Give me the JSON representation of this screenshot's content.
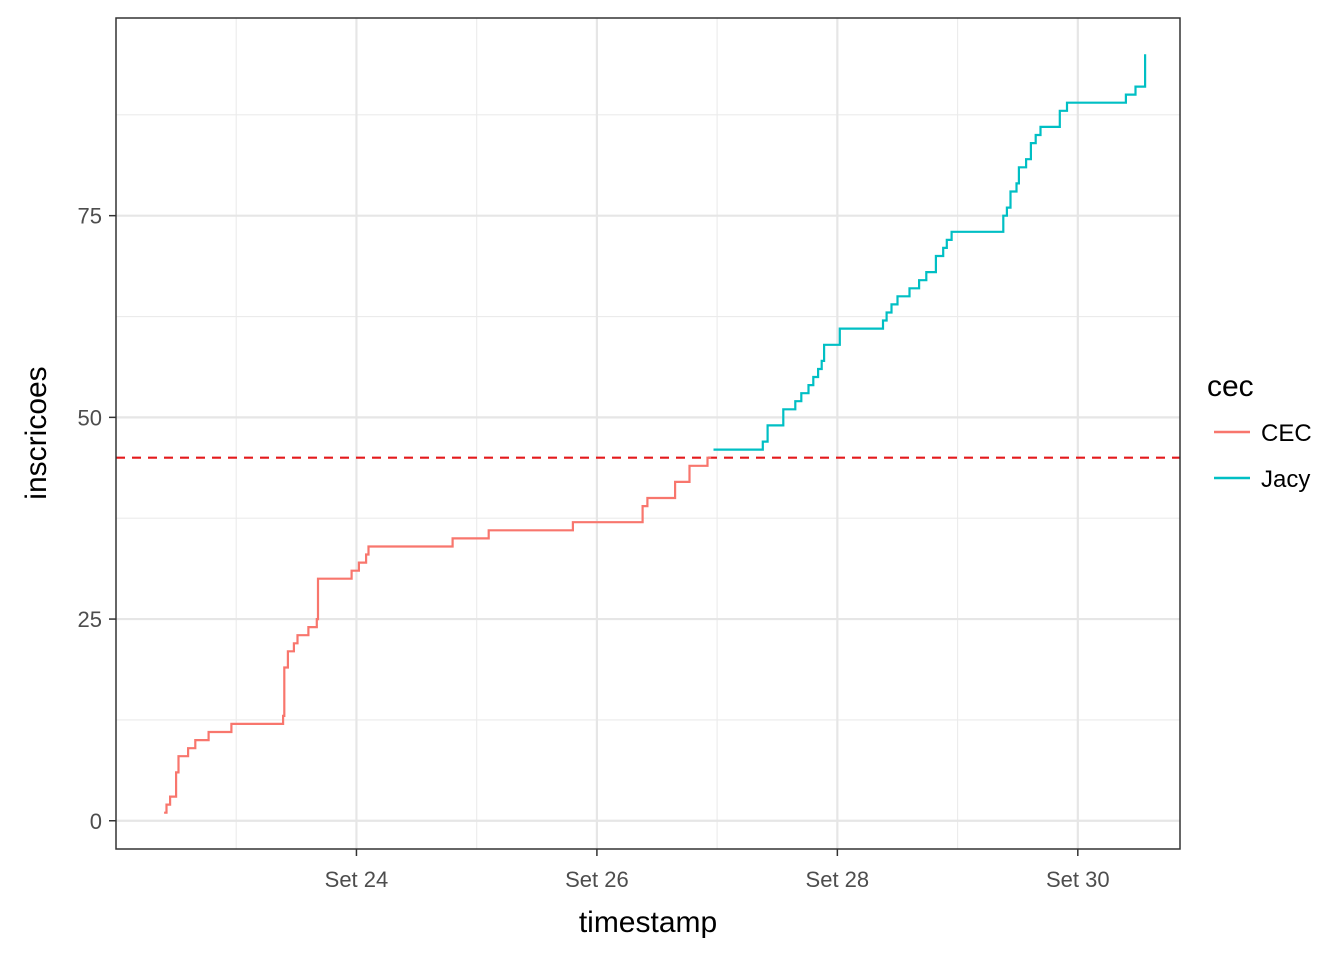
{
  "chart_data": {
    "type": "line",
    "title": "",
    "xlabel": "timestamp",
    "ylabel": "inscricoes",
    "x_ticks": [
      {
        "value": 24,
        "label": "Set 24"
      },
      {
        "value": 26,
        "label": "Set 26"
      },
      {
        "value": 28,
        "label": "Set 28"
      },
      {
        "value": 30,
        "label": "Set 30"
      }
    ],
    "y_ticks": [
      {
        "value": 0,
        "label": "0"
      },
      {
        "value": 25,
        "label": "25"
      },
      {
        "value": 50,
        "label": "50"
      },
      {
        "value": 75,
        "label": "75"
      }
    ],
    "xlim": [
      22.0,
      30.85
    ],
    "ylim": [
      -3.5,
      99.5
    ],
    "x_unit": "day of September",
    "grid": true,
    "reference_line": {
      "y": 45,
      "style": "dashed",
      "color": "#e41a1c"
    },
    "legend": {
      "title": "cec",
      "position": "right"
    },
    "series": [
      {
        "name": "CEC",
        "color": "#f8766d",
        "step": true,
        "points": [
          [
            22.4,
            1
          ],
          [
            22.42,
            2
          ],
          [
            22.45,
            3
          ],
          [
            22.5,
            6
          ],
          [
            22.52,
            8
          ],
          [
            22.6,
            9
          ],
          [
            22.66,
            10
          ],
          [
            22.77,
            11
          ],
          [
            22.96,
            12
          ],
          [
            23.39,
            13
          ],
          [
            23.4,
            19
          ],
          [
            23.43,
            21
          ],
          [
            23.48,
            22
          ],
          [
            23.51,
            23
          ],
          [
            23.6,
            24
          ],
          [
            23.67,
            25
          ],
          [
            23.68,
            30
          ],
          [
            23.96,
            31
          ],
          [
            24.02,
            32
          ],
          [
            24.08,
            33
          ],
          [
            24.1,
            34
          ],
          [
            24.8,
            35
          ],
          [
            25.1,
            36
          ],
          [
            25.8,
            37
          ],
          [
            26.38,
            39
          ],
          [
            26.42,
            40
          ],
          [
            26.65,
            42
          ],
          [
            26.77,
            44
          ],
          [
            26.92,
            45
          ]
        ],
        "end_x": 26.95
      },
      {
        "name": "Jacy",
        "color": "#00bfc4",
        "step": true,
        "points": [
          [
            26.97,
            46
          ],
          [
            27.38,
            47
          ],
          [
            27.42,
            49
          ],
          [
            27.55,
            51
          ],
          [
            27.65,
            52
          ],
          [
            27.7,
            53
          ],
          [
            27.76,
            54
          ],
          [
            27.8,
            55
          ],
          [
            27.84,
            56
          ],
          [
            27.87,
            57
          ],
          [
            27.89,
            59
          ],
          [
            28.02,
            61
          ],
          [
            28.38,
            62
          ],
          [
            28.41,
            63
          ],
          [
            28.45,
            64
          ],
          [
            28.5,
            65
          ],
          [
            28.6,
            66
          ],
          [
            28.68,
            67
          ],
          [
            28.74,
            68
          ],
          [
            28.82,
            70
          ],
          [
            28.88,
            71
          ],
          [
            28.91,
            72
          ],
          [
            28.95,
            73
          ],
          [
            29.38,
            75
          ],
          [
            29.41,
            76
          ],
          [
            29.44,
            78
          ],
          [
            29.49,
            79
          ],
          [
            29.51,
            81
          ],
          [
            29.57,
            82
          ],
          [
            29.61,
            84
          ],
          [
            29.65,
            85
          ],
          [
            29.69,
            86
          ],
          [
            29.85,
            88
          ],
          [
            29.91,
            89
          ],
          [
            30.4,
            90
          ],
          [
            30.48,
            91
          ],
          [
            30.56,
            95
          ]
        ],
        "end_x": 30.56
      }
    ]
  }
}
